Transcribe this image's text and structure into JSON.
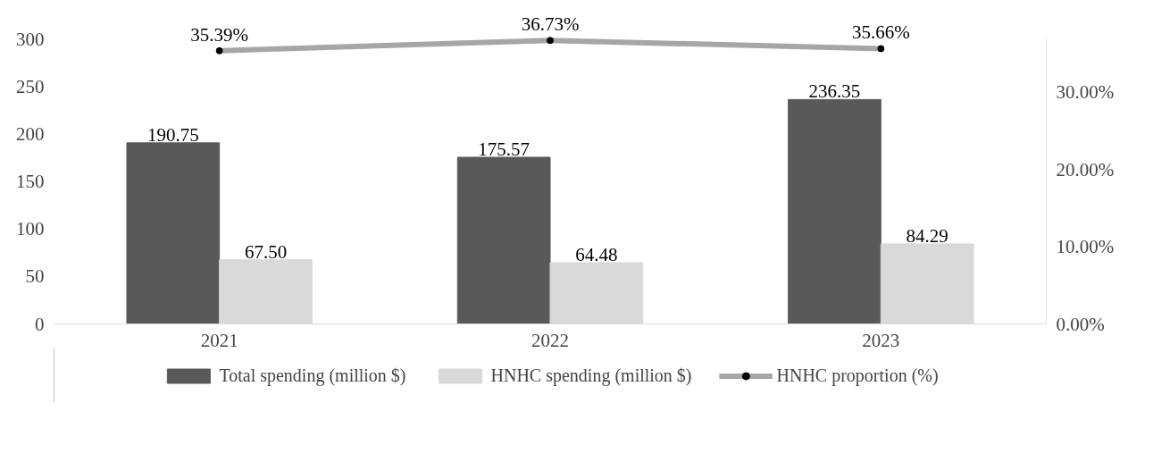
{
  "chart_data": {
    "type": "bar",
    "categories": [
      "2021",
      "2022",
      "2023"
    ],
    "series": [
      {
        "name": "Total spending (million $)",
        "color": "#595959",
        "values": [
          190.75,
          175.57,
          236.35
        ],
        "value_labels": [
          "190.75",
          "175.57",
          "236.35"
        ]
      },
      {
        "name": "HNHC spending (million $)",
        "color": "#d9d9d9",
        "values": [
          67.5,
          64.48,
          84.29
        ],
        "value_labels": [
          "67.50",
          "64.48",
          "84.29"
        ]
      },
      {
        "name": "HNHC proportion (%)",
        "type": "line",
        "axis": "y2",
        "color": "#a6a6a6",
        "marker": "circle",
        "line_style": "solid",
        "values": [
          35.39,
          36.73,
          35.66
        ],
        "value_labels": [
          "35.39%",
          "36.73%",
          "35.66%"
        ]
      }
    ],
    "ylim": [
      0,
      300
    ],
    "yticks": [
      0,
      50,
      100,
      150,
      200,
      250,
      300
    ],
    "y2lim": [
      0,
      36.9
    ],
    "y2ticks": [
      {
        "value": 0,
        "label": "0.00%"
      },
      {
        "value": 10,
        "label": "10.00%"
      },
      {
        "value": 20,
        "label": "20.00%"
      },
      {
        "value": 30,
        "label": "30.00%"
      }
    ],
    "grid": false,
    "legend": "bottom"
  }
}
